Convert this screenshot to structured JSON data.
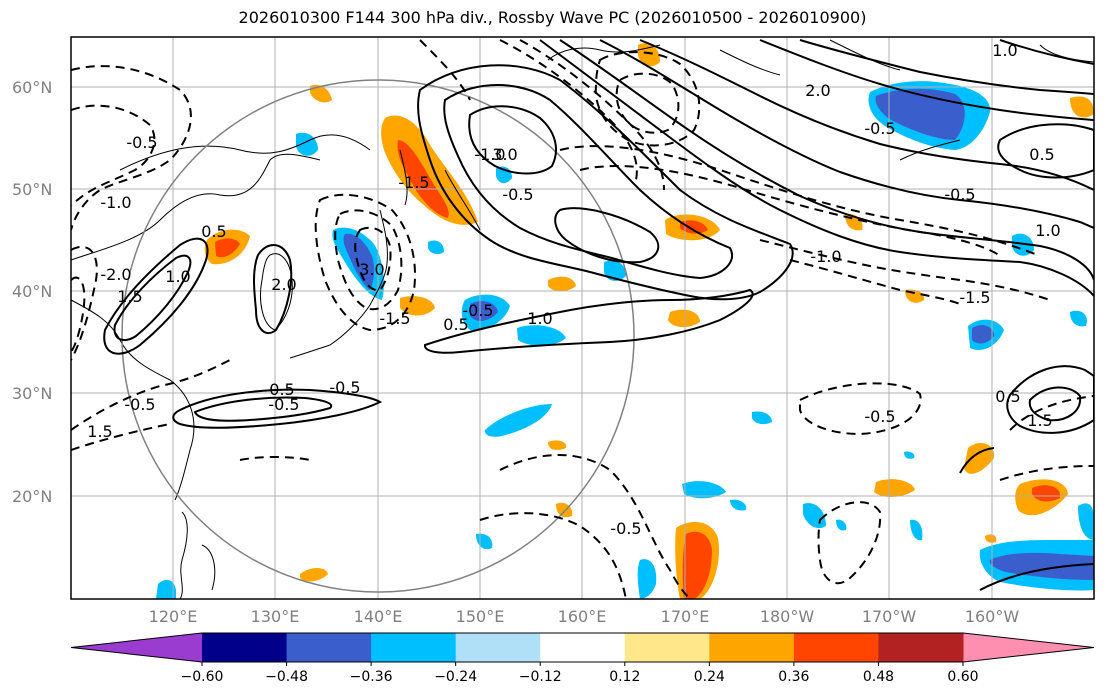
{
  "title": "2026010300 F144 300 hPa div., Rossby Wave PC (2026010500 - 2026010900)",
  "map": {
    "lat_labels": [
      "60°N",
      "50°N",
      "40°N",
      "30°N",
      "20°N"
    ],
    "lon_labels": [
      "120°E",
      "130°E",
      "140°E",
      "150°E",
      "160°E",
      "170°E",
      "180°W",
      "170°W",
      "160°W"
    ],
    "contour_labels": [
      "-0.5",
      "-1.0",
      "0.5",
      "1.0",
      "1.5",
      "-2.0",
      "2.0",
      "3.0",
      "-1.5",
      "-0.5",
      "-1.0",
      "-0.5",
      "-1.5",
      "0.5",
      "1.0",
      "-0.5",
      "0.5",
      "-0.5",
      "1.5",
      "-0.5",
      "-0.5",
      "0.5",
      "1.5",
      "-1.5",
      "-0.5",
      "2.0",
      "3.0",
      "-1.0",
      "1.0",
      "0.5",
      "1.0",
      "-0.5",
      "-0.5"
    ]
  },
  "colorbar": {
    "ticks": [
      "−0.60",
      "−0.48",
      "−0.36",
      "−0.24",
      "−0.12",
      "0.12",
      "0.24",
      "0.36",
      "0.48",
      "0.60"
    ],
    "colors": [
      "#9a3ccf",
      "#00008b",
      "#3a5fcd",
      "#00bfff",
      "#afe0f8",
      "#ffffff",
      "#ffe78a",
      "#ffa500",
      "#ff4500",
      "#b22222",
      "#ff8fb0"
    ]
  }
}
